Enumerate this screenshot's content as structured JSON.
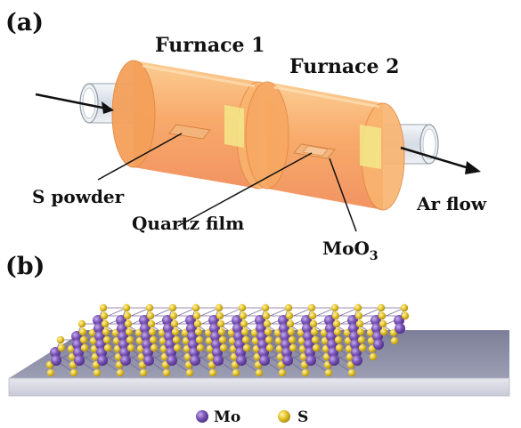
{
  "panel_a": {
    "label": "(a)",
    "furnace_1": "Furnace 1",
    "furnace_2": "Furnace 2",
    "s_powder": "S powder",
    "quartz_film": "Quartz film",
    "moo3_main": "MoO",
    "moo3_sub": "3",
    "ar_flow": "Ar flow"
  },
  "panel_b": {
    "label": "(b)",
    "legend": {
      "mo_label": "Mo",
      "s_label": "S"
    }
  },
  "colors": {
    "furnace_orange": "#f7a35e",
    "quartz_tube": "#dde3ea",
    "substrate": "#8e90a8",
    "mo_atom": "#7b55b8",
    "s_atom": "#e6c52a"
  }
}
